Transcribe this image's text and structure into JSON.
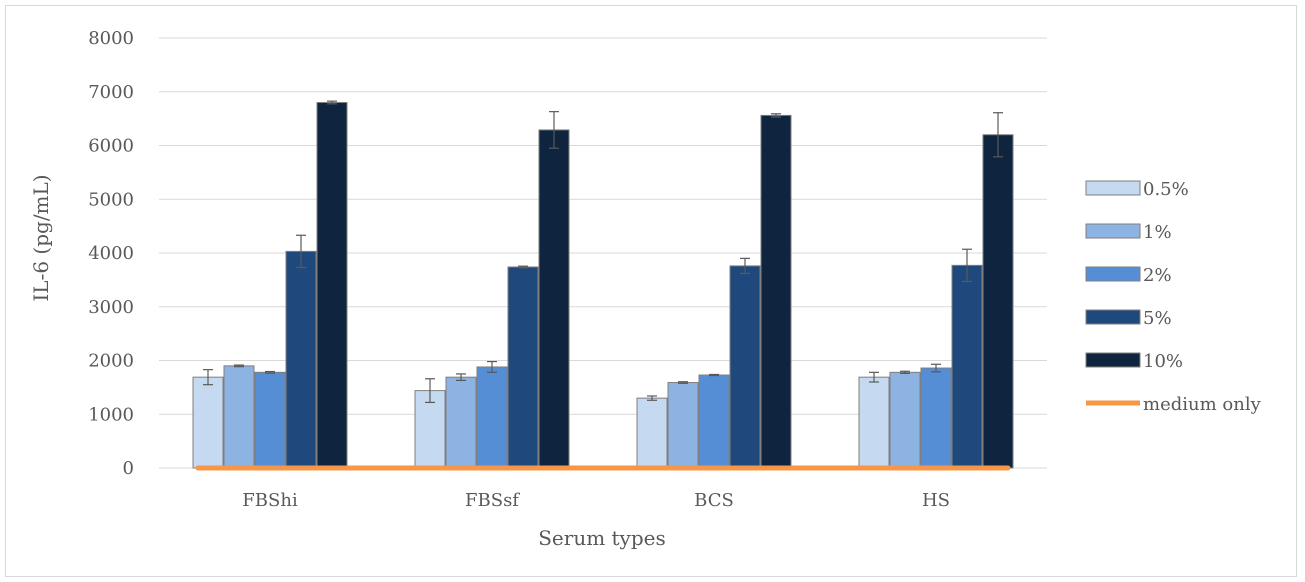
{
  "chart_data": {
    "type": "bar",
    "xlabel": "Serum types",
    "ylabel": "IL-6 (pg/mL)",
    "ylim": [
      0,
      8000
    ],
    "yticks": [
      0,
      1000,
      2000,
      3000,
      4000,
      5000,
      6000,
      7000,
      8000
    ],
    "grid": true,
    "legend_position": "right",
    "categories": [
      "FBShi",
      "FBSsf",
      "BCS",
      "HS"
    ],
    "series": [
      {
        "name": "0.5%",
        "color": "#c5d9f1",
        "values": [
          1690,
          1440,
          1300,
          1690
        ],
        "errors": [
          140,
          220,
          40,
          90
        ]
      },
      {
        "name": "1%",
        "color": "#8db3e2",
        "values": [
          1900,
          1690,
          1590,
          1780
        ],
        "errors": [
          15,
          60,
          15,
          20
        ]
      },
      {
        "name": "2%",
        "color": "#558ed5",
        "values": [
          1780,
          1880,
          1730,
          1860
        ],
        "errors": [
          15,
          100,
          10,
          70
        ]
      },
      {
        "name": "5%",
        "color": "#1f497d",
        "values": [
          4030,
          3740,
          3760,
          3770
        ],
        "errors": [
          300,
          15,
          140,
          300
        ]
      },
      {
        "name": "10%",
        "color": "#0f243e",
        "values": [
          6800,
          6290,
          6560,
          6200
        ],
        "errors": [
          25,
          340,
          30,
          410
        ]
      }
    ],
    "reference_line": {
      "name": "medium only",
      "color": "#f79646",
      "value": 0
    }
  }
}
